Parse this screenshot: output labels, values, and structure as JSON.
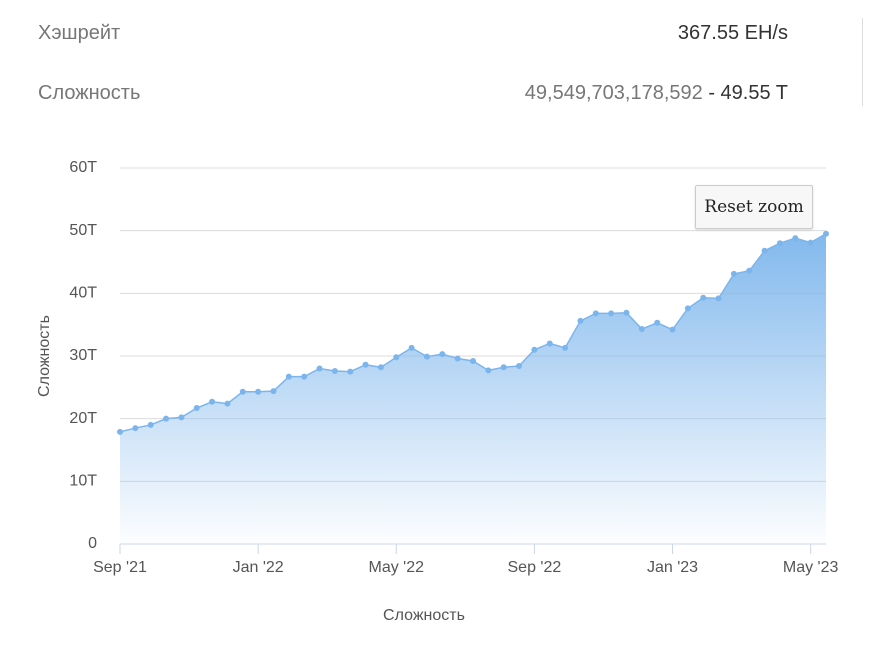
{
  "stats": [
    {
      "label": "Хэшрейт",
      "value": "367.55 EH/s"
    },
    {
      "label": "Сложность",
      "value": "49,549,703,178,592",
      "suffix": "- 49.55 T"
    }
  ],
  "button": "Reset zoom",
  "chart_data": {
    "type": "area",
    "y_label": "Сложность",
    "x_label": "Сложность",
    "categories": [
      "Sep '21",
      null,
      null,
      null,
      null,
      null,
      null,
      null,
      null,
      "Jan '22",
      null,
      null,
      null,
      null,
      null,
      null,
      null,
      null,
      "May '22",
      null,
      null,
      null,
      null,
      null,
      null,
      null,
      null,
      "Sep '22",
      null,
      null,
      null,
      null,
      null,
      null,
      null,
      null,
      "Jan '23",
      null,
      null,
      null,
      null,
      null,
      null,
      null,
      null,
      "May '23",
      null
    ],
    "values": [
      17.9,
      18.5,
      19.0,
      20.0,
      20.2,
      21.7,
      22.7,
      22.4,
      24.3,
      24.3,
      24.4,
      26.7,
      26.7,
      28.0,
      27.6,
      27.5,
      28.6,
      28.2,
      29.8,
      31.3,
      29.9,
      30.3,
      29.6,
      29.2,
      27.7,
      28.2,
      28.4,
      31.0,
      32.0,
      31.3,
      35.6,
      36.8,
      36.8,
      36.9,
      34.3,
      35.3,
      34.2,
      37.6,
      39.3,
      39.2,
      43.1,
      43.6,
      46.8,
      48.0,
      48.8,
      48.1,
      49.5
    ],
    "color": "#7cb5ec",
    "ylim": [
      0,
      60
    ],
    "yticks": [
      0,
      {
        "value": 10,
        "label": "10T"
      },
      {
        "value": 20,
        "label": "20T"
      },
      {
        "value": 30,
        "label": "30T"
      },
      {
        "value": 40,
        "label": "40T"
      },
      {
        "value": 50,
        "label": "50T"
      },
      {
        "value": 60,
        "label": "60T"
      }
    ],
    "grid": true
  }
}
